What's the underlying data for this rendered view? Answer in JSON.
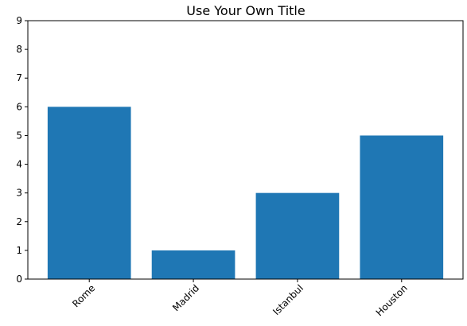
{
  "chart_data": {
    "type": "bar",
    "title": "Use Your Own Title",
    "xlabel": "",
    "ylabel": "",
    "categories": [
      "Rome",
      "Madrid",
      "Istanbul",
      "Houston"
    ],
    "values": [
      6,
      1,
      3,
      5
    ],
    "ylim": [
      0,
      9
    ],
    "yticks": [
      0,
      1,
      2,
      3,
      4,
      5,
      6,
      7,
      8,
      9
    ],
    "x_tick_rotation_deg": 45,
    "bar_color": "#1f77b4",
    "grid": false,
    "legend": "none"
  }
}
